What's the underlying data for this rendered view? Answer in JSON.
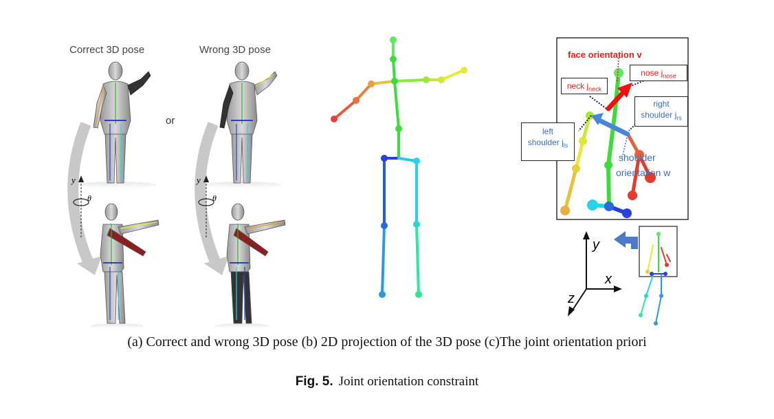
{
  "panel_a": {
    "label_correct": "Correct 3D pose",
    "label_wrong": "Wrong 3D pose",
    "label_or": "or",
    "axis_y": "y",
    "axis_theta": "θ"
  },
  "panel_c": {
    "face_orientation": "face orientation v",
    "nose_label": "nose j",
    "nose_sub": "nose",
    "neck_label": "neck j",
    "neck_sub": "neck",
    "right_shoulder_line1": "right",
    "right_shoulder_line2": "shoulder j",
    "right_shoulder_sub": "rs",
    "left_shoulder_line1": "left",
    "left_shoulder_line2": "shoulder j",
    "left_shoulder_sub": "ls",
    "shoulder_orientation_line1": "shoulder",
    "shoulder_orientation_line2": "orientation w",
    "axis_x": "x",
    "axis_y": "y",
    "axis_z": "z"
  },
  "colors": {
    "skeleton_green": "#3ddc3d",
    "skeleton_blue": "#2a3fd8",
    "skeleton_cyan": "#27d3e8",
    "skeleton_red": "#e83a2a",
    "skeleton_yellow": "#e8e83a",
    "arrow_red": "#f01010",
    "arrow_blue": "#4a86d8"
  },
  "captions": {
    "subcaption": "(a) Correct and wrong 3D pose (b) 2D projection of the 3D pose (c)The joint orientation priori",
    "fig_label": "Fig. 5.",
    "fig_title": "Joint orientation constraint"
  }
}
